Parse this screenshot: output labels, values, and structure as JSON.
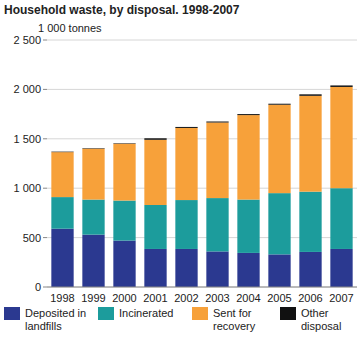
{
  "chart_data": {
    "type": "bar",
    "title": "Household waste, by disposal. 1998-2007",
    "ylabel": "1 000 tonnes",
    "categories": [
      "1998",
      "1999",
      "2000",
      "2001",
      "2002",
      "2003",
      "2004",
      "2005",
      "2006",
      "2007"
    ],
    "series": [
      {
        "name": "Deposited in landfills",
        "color": "#2b3990",
        "values": [
          590,
          530,
          470,
          385,
          385,
          360,
          345,
          330,
          355,
          385
        ]
      },
      {
        "name": "Incinerated",
        "color": "#1c9c9c",
        "values": [
          320,
          355,
          405,
          445,
          495,
          540,
          540,
          620,
          610,
          615
        ]
      },
      {
        "name": "Sent for recovery",
        "color": "#f7a13a",
        "values": [
          455,
          515,
          575,
          660,
          730,
          765,
          855,
          895,
          970,
          1025
        ]
      },
      {
        "name": "Other disposal",
        "color": "#111111",
        "values": [
          5,
          5,
          5,
          15,
          10,
          10,
          10,
          10,
          15,
          15
        ]
      }
    ],
    "stacked": true,
    "ylim": [
      0,
      2500
    ],
    "yticks": [
      0,
      500,
      {
        "value": 1000,
        "label": "1 000"
      },
      {
        "value": 1500,
        "label": "1 500"
      },
      {
        "value": 2000,
        "label": "2 000"
      },
      {
        "value": 2500,
        "label": "2 500"
      }
    ],
    "grid": true,
    "legend": "bottom"
  }
}
